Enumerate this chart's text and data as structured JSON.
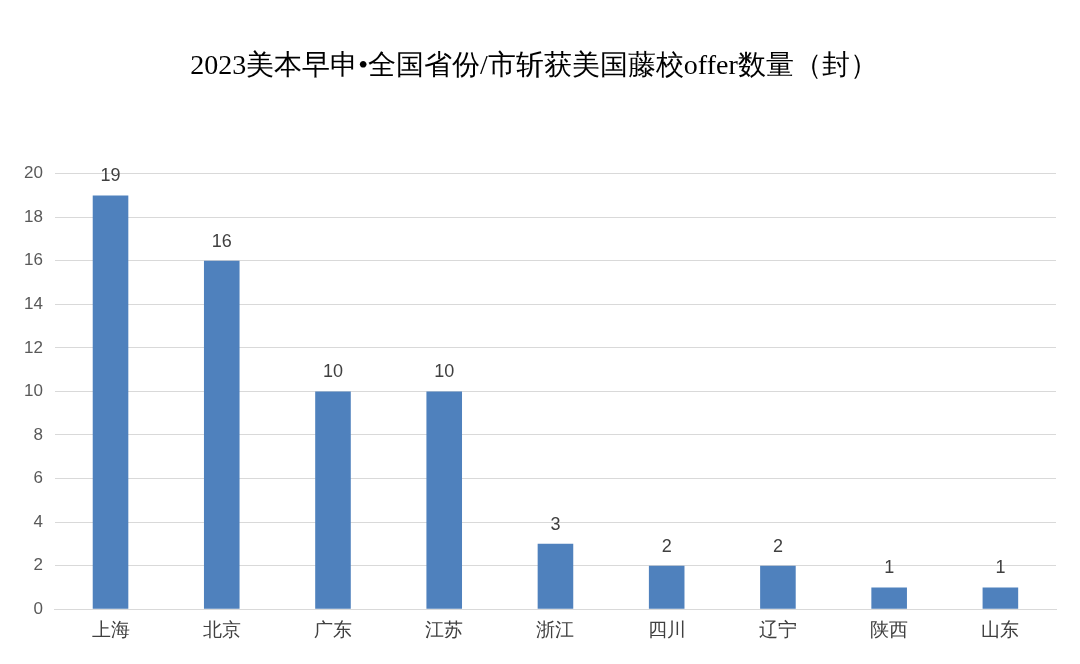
{
  "chart_data": {
    "type": "bar",
    "title": "2023美本早申•全国省份/市斩获美国藤校offer数量（封）",
    "categories": [
      "上海",
      "北京",
      "广东",
      "江苏",
      "浙江",
      "四川",
      "辽宁",
      "陕西",
      "山东"
    ],
    "values": [
      19,
      16,
      10,
      10,
      3,
      2,
      2,
      1,
      1
    ],
    "color": "#4f81bd",
    "ylim": [
      0,
      20
    ],
    "yticks": [
      0,
      2,
      4,
      6,
      8,
      10,
      12,
      14,
      16,
      18,
      20
    ],
    "grid": "y",
    "data_labels": true,
    "legend": false
  }
}
